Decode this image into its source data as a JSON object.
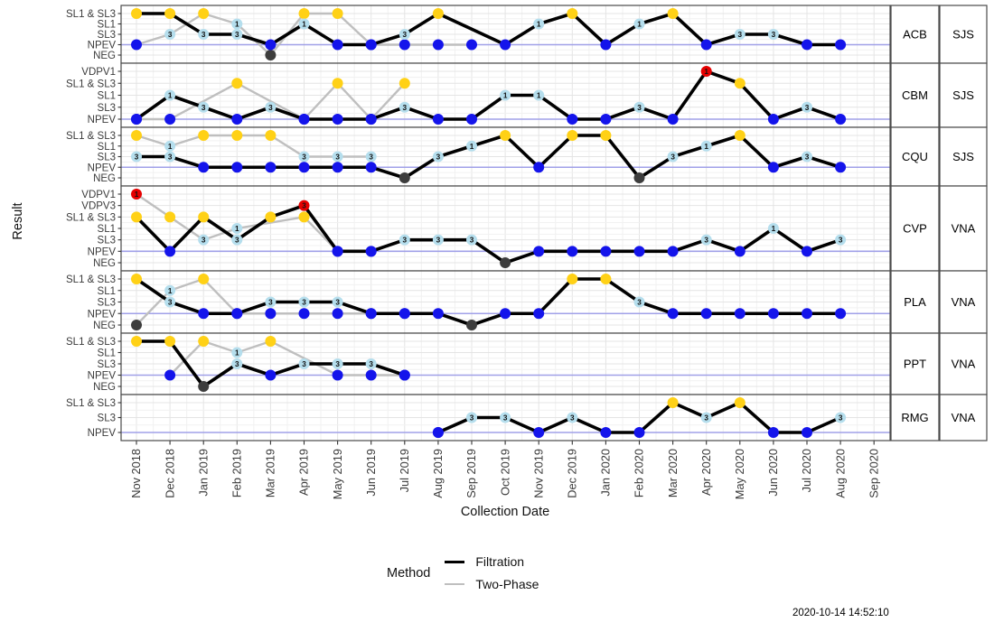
{
  "chart_data": {
    "type": "line",
    "title": "",
    "xlabel": "Collection Date",
    "ylabel": "Result",
    "timestamp": "2020-10-14 14:52:10",
    "x_categories": [
      "Nov 2018",
      "Dec 2018",
      "Jan 2019",
      "Feb 2019",
      "Mar 2019",
      "Apr 2019",
      "May 2019",
      "Jun 2019",
      "Jul 2019",
      "Aug 2019",
      "Sep 2019",
      "Oct 2019",
      "Nov 2019",
      "Dec 2019",
      "Jan 2020",
      "Feb 2020",
      "Mar 2020",
      "Apr 2020",
      "May 2020",
      "Jun 2020",
      "Jul 2020",
      "Aug 2020",
      "Sep 2020"
    ],
    "legend": {
      "title": "Method",
      "entries": [
        {
          "label": "Filtration",
          "color": "#000000"
        },
        {
          "label": "Two-Phase",
          "color": "#BFBFBF"
        }
      ]
    },
    "result_colors": {
      "SL1 & SL3": "#FFD116",
      "SL1": "#B5DEED",
      "SL3": "#B5DEED",
      "VDPV1": "#E60000",
      "VDPV3": "#E60000",
      "NPEV": "#1414EB",
      "NEG": "#3D3D3D"
    },
    "serotype_labels": {
      "SL1": "1",
      "SL3": "3",
      "VDPV1": "1",
      "VDPV3": "3"
    },
    "method_colors": {
      "Filtration": "#000000",
      "Two-Phase": "#BFBFBF"
    },
    "npev_refline_color": "#A0A0E8",
    "facets": [
      {
        "station": "ACB",
        "site": "SJS",
        "levels": [
          "SL1 & SL3",
          "SL1",
          "SL3",
          "NPEV",
          "NEG"
        ],
        "filtration": [
          [
            0,
            "SL1 & SL3"
          ],
          [
            1,
            "SL1 & SL3"
          ],
          [
            2,
            "SL3"
          ],
          [
            3,
            "SL3"
          ],
          [
            4,
            "NPEV"
          ],
          [
            5,
            "SL1"
          ],
          [
            6,
            "NPEV"
          ],
          [
            7,
            "NPEV"
          ],
          [
            8,
            "SL3"
          ],
          [
            9,
            "SL1 & SL3"
          ],
          [
            11,
            "NPEV"
          ],
          [
            12,
            "SL1"
          ],
          [
            13,
            "SL1 & SL3"
          ],
          [
            14,
            "NPEV"
          ],
          [
            15,
            "SL1"
          ],
          [
            16,
            "SL1 & SL3"
          ],
          [
            17,
            "NPEV"
          ],
          [
            18,
            "SL3"
          ],
          [
            19,
            "SL3"
          ],
          [
            20,
            "NPEV"
          ],
          [
            21,
            "NPEV"
          ]
        ],
        "twophase": [
          [
            0,
            "NPEV"
          ],
          [
            1,
            "SL3"
          ],
          [
            2,
            "SL1 & SL3"
          ],
          [
            3,
            "SL1"
          ],
          [
            4,
            "NEG"
          ],
          [
            5,
            "SL1 & SL3"
          ],
          [
            6,
            "SL1 & SL3"
          ],
          [
            7,
            "NPEV"
          ],
          [
            8,
            "NPEV"
          ],
          [
            9,
            "NPEV"
          ],
          [
            10,
            "NPEV"
          ]
        ]
      },
      {
        "station": "CBM",
        "site": "SJS",
        "levels": [
          "VDPV1",
          "SL1 & SL3",
          "SL1",
          "SL3",
          "NPEV"
        ],
        "filtration": [
          [
            0,
            "NPEV"
          ],
          [
            1,
            "SL1"
          ],
          [
            2,
            "SL3"
          ],
          [
            3,
            "NPEV"
          ],
          [
            4,
            "SL3"
          ],
          [
            5,
            "NPEV"
          ],
          [
            6,
            "NPEV"
          ],
          [
            7,
            "NPEV"
          ],
          [
            8,
            "SL3"
          ],
          [
            9,
            "NPEV"
          ],
          [
            10,
            "NPEV"
          ],
          [
            11,
            "SL1"
          ],
          [
            12,
            "SL1"
          ],
          [
            13,
            "NPEV"
          ],
          [
            14,
            "NPEV"
          ],
          [
            15,
            "SL3"
          ],
          [
            16,
            "NPEV"
          ],
          [
            17,
            "VDPV1"
          ],
          [
            18,
            "SL1 & SL3"
          ],
          [
            19,
            "NPEV"
          ],
          [
            20,
            "SL3"
          ],
          [
            21,
            "NPEV"
          ]
        ],
        "twophase": [
          [
            0,
            "NPEV"
          ],
          [
            1,
            "NPEV"
          ],
          [
            3,
            "SL1 & SL3"
          ],
          [
            5,
            "NPEV"
          ],
          [
            6,
            "SL1 & SL3"
          ],
          [
            7,
            "NPEV"
          ],
          [
            8,
            "SL1 & SL3"
          ]
        ]
      },
      {
        "station": "CQU",
        "site": "SJS",
        "levels": [
          "SL1 & SL3",
          "SL1",
          "SL3",
          "NPEV",
          "NEG"
        ],
        "filtration": [
          [
            0,
            "SL3"
          ],
          [
            1,
            "SL3"
          ],
          [
            2,
            "NPEV"
          ],
          [
            3,
            "NPEV"
          ],
          [
            4,
            "NPEV"
          ],
          [
            5,
            "NPEV"
          ],
          [
            6,
            "NPEV"
          ],
          [
            7,
            "NPEV"
          ],
          [
            8,
            "NEG"
          ],
          [
            9,
            "SL3"
          ],
          [
            10,
            "SL1"
          ],
          [
            11,
            "SL1 & SL3"
          ],
          [
            12,
            "NPEV"
          ],
          [
            13,
            "SL1 & SL3"
          ],
          [
            14,
            "SL1 & SL3"
          ],
          [
            15,
            "NEG"
          ],
          [
            16,
            "SL3"
          ],
          [
            17,
            "SL1"
          ],
          [
            18,
            "SL1 & SL3"
          ],
          [
            19,
            "NPEV"
          ],
          [
            20,
            "SL3"
          ],
          [
            21,
            "NPEV"
          ]
        ],
        "twophase": [
          [
            0,
            "SL1 & SL3"
          ],
          [
            1,
            "SL1"
          ],
          [
            2,
            "SL1 & SL3"
          ],
          [
            3,
            "SL1 & SL3"
          ],
          [
            4,
            "SL1 & SL3"
          ],
          [
            5,
            "SL3"
          ],
          [
            6,
            "SL3"
          ],
          [
            7,
            "SL3"
          ]
        ]
      },
      {
        "station": "CVP",
        "site": "VNA",
        "levels": [
          "VDPV1",
          "VDPV3",
          "SL1 & SL3",
          "SL1",
          "SL3",
          "NPEV",
          "NEG"
        ],
        "filtration": [
          [
            0,
            "SL1 & SL3"
          ],
          [
            1,
            "NPEV"
          ],
          [
            2,
            "SL1 & SL3"
          ],
          [
            3,
            "SL3"
          ],
          [
            4,
            "SL1 & SL3"
          ],
          [
            5,
            "VDPV3"
          ],
          [
            6,
            "NPEV"
          ],
          [
            7,
            "NPEV"
          ],
          [
            8,
            "SL3"
          ],
          [
            9,
            "SL3"
          ],
          [
            10,
            "SL3"
          ],
          [
            11,
            "NEG"
          ],
          [
            12,
            "NPEV"
          ],
          [
            13,
            "NPEV"
          ],
          [
            14,
            "NPEV"
          ],
          [
            15,
            "NPEV"
          ],
          [
            16,
            "NPEV"
          ],
          [
            17,
            "SL3"
          ],
          [
            18,
            "NPEV"
          ],
          [
            19,
            "SL1"
          ],
          [
            20,
            "NPEV"
          ],
          [
            21,
            "SL3"
          ]
        ],
        "twophase": [
          [
            0,
            "VDPV1"
          ],
          [
            1,
            "SL1 & SL3"
          ],
          [
            2,
            "SL3"
          ],
          [
            3,
            "SL1"
          ],
          [
            5,
            "SL1 & SL3"
          ],
          [
            6,
            "NPEV"
          ],
          [
            7,
            "NPEV"
          ]
        ]
      },
      {
        "station": "PLA",
        "site": "VNA",
        "levels": [
          "SL1 & SL3",
          "SL1",
          "SL3",
          "NPEV",
          "NEG"
        ],
        "filtration": [
          [
            0,
            "SL1 & SL3"
          ],
          [
            1,
            "SL3"
          ],
          [
            2,
            "NPEV"
          ],
          [
            3,
            "NPEV"
          ],
          [
            4,
            "SL3"
          ],
          [
            5,
            "SL3"
          ],
          [
            6,
            "SL3"
          ],
          [
            7,
            "NPEV"
          ],
          [
            8,
            "NPEV"
          ],
          [
            9,
            "NPEV"
          ],
          [
            10,
            "NEG"
          ],
          [
            11,
            "NPEV"
          ],
          [
            12,
            "NPEV"
          ],
          [
            13,
            "SL1 & SL3"
          ],
          [
            14,
            "SL1 & SL3"
          ],
          [
            15,
            "SL3"
          ],
          [
            16,
            "NPEV"
          ],
          [
            17,
            "NPEV"
          ],
          [
            18,
            "NPEV"
          ],
          [
            19,
            "NPEV"
          ],
          [
            20,
            "NPEV"
          ],
          [
            21,
            "NPEV"
          ]
        ],
        "twophase": [
          [
            0,
            "NEG"
          ],
          [
            1,
            "SL1"
          ],
          [
            2,
            "SL1 & SL3"
          ],
          [
            3,
            "NPEV"
          ],
          [
            4,
            "NPEV"
          ],
          [
            5,
            "NPEV"
          ],
          [
            6,
            "NPEV"
          ],
          [
            7,
            "NPEV"
          ],
          [
            8,
            "NPEV"
          ]
        ]
      },
      {
        "station": "PPT",
        "site": "VNA",
        "levels": [
          "SL1 & SL3",
          "SL1",
          "SL3",
          "NPEV",
          "NEG"
        ],
        "filtration": [
          [
            0,
            "SL1 & SL3"
          ],
          [
            1,
            "SL1 & SL3"
          ],
          [
            2,
            "NEG"
          ],
          [
            3,
            "SL3"
          ],
          [
            4,
            "NPEV"
          ],
          [
            5,
            "SL3"
          ],
          [
            6,
            "SL3"
          ],
          [
            7,
            "SL3"
          ],
          [
            8,
            "NPEV"
          ]
        ],
        "twophase": [
          [
            1,
            "NPEV"
          ],
          [
            2,
            "SL1 & SL3"
          ],
          [
            3,
            "SL1"
          ],
          [
            4,
            "SL1 & SL3"
          ],
          [
            6,
            "NPEV"
          ],
          [
            7,
            "NPEV"
          ],
          [
            8,
            "NPEV"
          ]
        ]
      },
      {
        "station": "RMG",
        "site": "VNA",
        "levels": [
          "SL1 & SL3",
          "SL3",
          "NPEV"
        ],
        "filtration": [
          [
            9,
            "NPEV"
          ],
          [
            10,
            "SL3"
          ],
          [
            11,
            "SL3"
          ],
          [
            12,
            "NPEV"
          ],
          [
            13,
            "SL3"
          ],
          [
            14,
            "NPEV"
          ],
          [
            15,
            "NPEV"
          ],
          [
            16,
            "SL1 & SL3"
          ],
          [
            17,
            "SL3"
          ],
          [
            18,
            "SL1 & SL3"
          ],
          [
            19,
            "NPEV"
          ],
          [
            20,
            "NPEV"
          ],
          [
            21,
            "SL3"
          ]
        ],
        "twophase": [
          [
            9,
            "NPEV"
          ],
          [
            10,
            "SL3"
          ]
        ]
      }
    ]
  }
}
